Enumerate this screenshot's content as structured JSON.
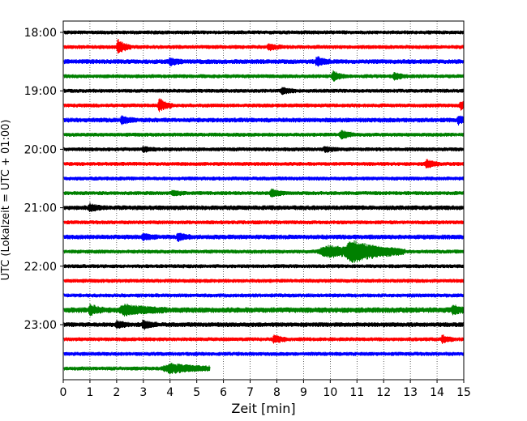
{
  "chart_data": {
    "type": "line",
    "subtype": "helicorder",
    "xlabel": "Zeit  [min]",
    "ylabel": "UTC (Lokalzeit = UTC + 01:00)",
    "xlim": [
      0,
      15
    ],
    "x_ticks": [
      "0",
      "1",
      "2",
      "3",
      "4",
      "5",
      "6",
      "7",
      "8",
      "9",
      "10",
      "11",
      "12",
      "13",
      "14",
      "15"
    ],
    "y_tick_labels": [
      "18:00",
      "19:00",
      "20:00",
      "21:00",
      "22:00",
      "23:00"
    ],
    "grid": "vertical dotted lines at each minute",
    "line_colors": [
      "#000000",
      "#ff0000",
      "#0000ff",
      "#008000"
    ],
    "row_interval_min": 15,
    "traces": [
      {
        "start": "18:00",
        "color": "#000000",
        "amp": 2.5,
        "end_min": 15,
        "events": []
      },
      {
        "start": "18:15",
        "color": "#ff0000",
        "amp": 2.5,
        "end_min": 15,
        "events": [
          {
            "t": 2.05,
            "a": 9
          },
          {
            "t": 7.7,
            "a": 4
          }
        ]
      },
      {
        "start": "18:30",
        "color": "#0000ff",
        "amp": 3,
        "end_min": 15,
        "events": [
          {
            "t": 4.0,
            "a": 4
          },
          {
            "t": 9.5,
            "a": 5
          }
        ]
      },
      {
        "start": "18:45",
        "color": "#008000",
        "amp": 2.5,
        "end_min": 15,
        "events": [
          {
            "t": 10.1,
            "a": 6
          },
          {
            "t": 12.4,
            "a": 4
          }
        ]
      },
      {
        "start": "19:00",
        "color": "#000000",
        "amp": 2.5,
        "end_min": 15,
        "events": [
          {
            "t": 8.2,
            "a": 4
          }
        ]
      },
      {
        "start": "19:15",
        "color": "#ff0000",
        "amp": 2.5,
        "end_min": 15,
        "events": [
          {
            "t": 3.6,
            "a": 8
          },
          {
            "t": 14.9,
            "a": 5
          }
        ]
      },
      {
        "start": "19:30",
        "color": "#0000ff",
        "amp": 3,
        "end_min": 15,
        "events": [
          {
            "t": 2.2,
            "a": 4
          },
          {
            "t": 14.8,
            "a": 4
          }
        ]
      },
      {
        "start": "19:45",
        "color": "#008000",
        "amp": 2.5,
        "end_min": 15,
        "events": [
          {
            "t": 10.4,
            "a": 5
          }
        ]
      },
      {
        "start": "20:00",
        "color": "#000000",
        "amp": 2.5,
        "end_min": 15,
        "events": [
          {
            "t": 3.0,
            "a": 3
          },
          {
            "t": 9.8,
            "a": 3
          }
        ]
      },
      {
        "start": "20:15",
        "color": "#ff0000",
        "amp": 2.5,
        "end_min": 15,
        "events": [
          {
            "t": 13.6,
            "a": 5
          }
        ]
      },
      {
        "start": "20:30",
        "color": "#0000ff",
        "amp": 2.5,
        "end_min": 15,
        "events": []
      },
      {
        "start": "20:45",
        "color": "#008000",
        "amp": 2.5,
        "end_min": 15,
        "events": [
          {
            "t": 7.8,
            "a": 5
          },
          {
            "t": 4.1,
            "a": 3
          }
        ]
      },
      {
        "start": "21:00",
        "color": "#000000",
        "amp": 3,
        "end_min": 15,
        "events": [
          {
            "t": 1.0,
            "a": 4
          }
        ]
      },
      {
        "start": "21:15",
        "color": "#ff0000",
        "amp": 2.5,
        "end_min": 15,
        "events": []
      },
      {
        "start": "21:30",
        "color": "#0000ff",
        "amp": 3,
        "end_min": 15,
        "events": [
          {
            "t": 3.0,
            "a": 4
          },
          {
            "t": 4.3,
            "a": 4
          }
        ]
      },
      {
        "start": "21:45",
        "color": "#008000",
        "amp": 2.5,
        "end_min": 15,
        "events": [
          {
            "t": 9.9,
            "a": 7,
            "w": 1.4
          },
          {
            "t": 10.8,
            "a": 11,
            "w": 1.0
          }
        ]
      },
      {
        "start": "22:00",
        "color": "#000000",
        "amp": 2.5,
        "end_min": 15,
        "events": []
      },
      {
        "start": "22:15",
        "color": "#ff0000",
        "amp": 2.5,
        "end_min": 15,
        "events": []
      },
      {
        "start": "22:30",
        "color": "#0000ff",
        "amp": 2.5,
        "end_min": 15,
        "events": []
      },
      {
        "start": "22:45",
        "color": "#008000",
        "amp": 3.5,
        "end_min": 15,
        "events": [
          {
            "t": 1.0,
            "a": 6
          },
          {
            "t": 2.3,
            "a": 6,
            "w": 0.8
          },
          {
            "t": 14.6,
            "a": 5
          }
        ]
      },
      {
        "start": "23:00",
        "color": "#000000",
        "amp": 3,
        "end_min": 15,
        "events": [
          {
            "t": 2.0,
            "a": 4
          },
          {
            "t": 3.0,
            "a": 5
          }
        ]
      },
      {
        "start": "23:15",
        "color": "#ff0000",
        "amp": 2.5,
        "end_min": 15,
        "events": [
          {
            "t": 7.9,
            "a": 5
          },
          {
            "t": 14.2,
            "a": 4
          }
        ]
      },
      {
        "start": "23:30",
        "color": "#0000ff",
        "amp": 2.5,
        "end_min": 15,
        "events": []
      },
      {
        "start": "23:45",
        "color": "#008000",
        "amp": 2.5,
        "end_min": 5.5,
        "events": [
          {
            "t": 4.0,
            "a": 5,
            "w": 1.2
          }
        ]
      }
    ]
  }
}
